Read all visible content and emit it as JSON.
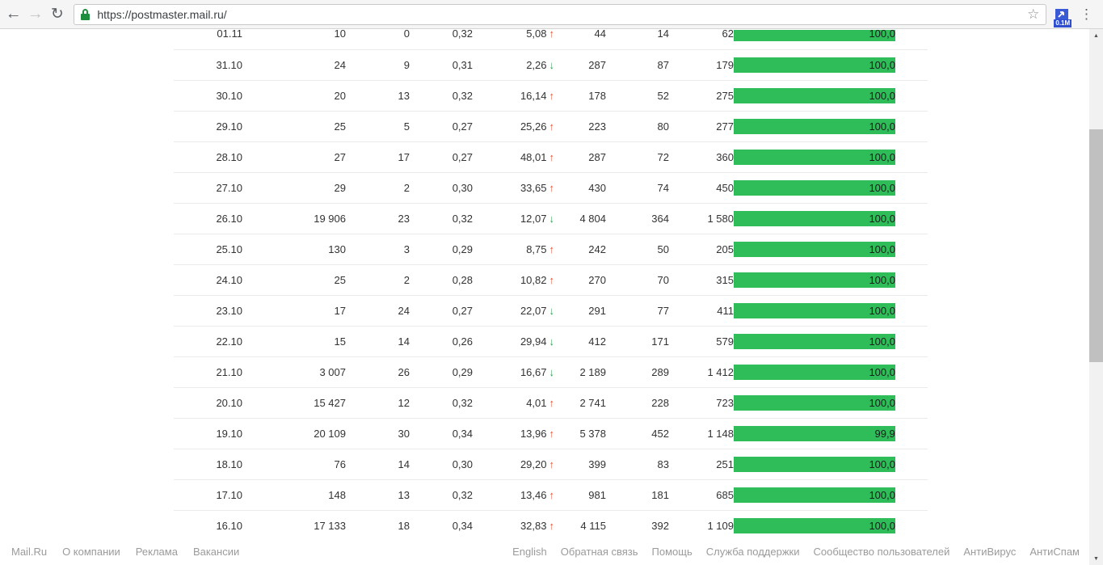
{
  "browser": {
    "url": "https://postmaster.mail.ru/",
    "back_icon": "←",
    "forward_icon": "→",
    "reload_icon": "↻",
    "star_icon": "☆",
    "menu_icon": "⋮",
    "extension_badge": "0.1M"
  },
  "table": {
    "rows": [
      {
        "date": "01.11",
        "c2": "10",
        "c3": "0",
        "c4": "0,32",
        "c5": "5,08",
        "trend": "up",
        "c6": "44",
        "c7": "14",
        "c8": "62",
        "bar_label": "100,0",
        "bar_pct": 100
      },
      {
        "date": "31.10",
        "c2": "24",
        "c3": "9",
        "c4": "0,31",
        "c5": "2,26",
        "trend": "down",
        "c6": "287",
        "c7": "87",
        "c8": "179",
        "bar_label": "100,0",
        "bar_pct": 100
      },
      {
        "date": "30.10",
        "c2": "20",
        "c3": "13",
        "c4": "0,32",
        "c5": "16,14",
        "trend": "up",
        "c6": "178",
        "c7": "52",
        "c8": "275",
        "bar_label": "100,0",
        "bar_pct": 100
      },
      {
        "date": "29.10",
        "c2": "25",
        "c3": "5",
        "c4": "0,27",
        "c5": "25,26",
        "trend": "up",
        "c6": "223",
        "c7": "80",
        "c8": "277",
        "bar_label": "100,0",
        "bar_pct": 100
      },
      {
        "date": "28.10",
        "c2": "27",
        "c3": "17",
        "c4": "0,27",
        "c5": "48,01",
        "trend": "up",
        "c6": "287",
        "c7": "72",
        "c8": "360",
        "bar_label": "100,0",
        "bar_pct": 100
      },
      {
        "date": "27.10",
        "c2": "29",
        "c3": "2",
        "c4": "0,30",
        "c5": "33,65",
        "trend": "up",
        "c6": "430",
        "c7": "74",
        "c8": "450",
        "bar_label": "100,0",
        "bar_pct": 100
      },
      {
        "date": "26.10",
        "c2": "19 906",
        "c3": "23",
        "c4": "0,32",
        "c5": "12,07",
        "trend": "down",
        "c6": "4 804",
        "c7": "364",
        "c8": "1 580",
        "bar_label": "100,0",
        "bar_pct": 100
      },
      {
        "date": "25.10",
        "c2": "130",
        "c3": "3",
        "c4": "0,29",
        "c5": "8,75",
        "trend": "up",
        "c6": "242",
        "c7": "50",
        "c8": "205",
        "bar_label": "100,0",
        "bar_pct": 100
      },
      {
        "date": "24.10",
        "c2": "25",
        "c3": "2",
        "c4": "0,28",
        "c5": "10,82",
        "trend": "up",
        "c6": "270",
        "c7": "70",
        "c8": "315",
        "bar_label": "100,0",
        "bar_pct": 100
      },
      {
        "date": "23.10",
        "c2": "17",
        "c3": "24",
        "c4": "0,27",
        "c5": "22,07",
        "trend": "down",
        "c6": "291",
        "c7": "77",
        "c8": "411",
        "bar_label": "100,0",
        "bar_pct": 100
      },
      {
        "date": "22.10",
        "c2": "15",
        "c3": "14",
        "c4": "0,26",
        "c5": "29,94",
        "trend": "down",
        "c6": "412",
        "c7": "171",
        "c8": "579",
        "bar_label": "100,0",
        "bar_pct": 100
      },
      {
        "date": "21.10",
        "c2": "3 007",
        "c3": "26",
        "c4": "0,29",
        "c5": "16,67",
        "trend": "down",
        "c6": "2 189",
        "c7": "289",
        "c8": "1 412",
        "bar_label": "100,0",
        "bar_pct": 100
      },
      {
        "date": "20.10",
        "c2": "15 427",
        "c3": "12",
        "c4": "0,32",
        "c5": "4,01",
        "trend": "up",
        "c6": "2 741",
        "c7": "228",
        "c8": "723",
        "bar_label": "100,0",
        "bar_pct": 100
      },
      {
        "date": "19.10",
        "c2": "20 109",
        "c3": "30",
        "c4": "0,34",
        "c5": "13,96",
        "trend": "up",
        "c6": "5 378",
        "c7": "452",
        "c8": "1 148",
        "bar_label": "99,9",
        "bar_pct": 99.9
      },
      {
        "date": "18.10",
        "c2": "76",
        "c3": "14",
        "c4": "0,30",
        "c5": "29,20",
        "trend": "up",
        "c6": "399",
        "c7": "83",
        "c8": "251",
        "bar_label": "100,0",
        "bar_pct": 100
      },
      {
        "date": "17.10",
        "c2": "148",
        "c3": "13",
        "c4": "0,32",
        "c5": "13,46",
        "trend": "up",
        "c6": "981",
        "c7": "181",
        "c8": "685",
        "bar_label": "100,0",
        "bar_pct": 100
      },
      {
        "date": "16.10",
        "c2": "17 133",
        "c3": "18",
        "c4": "0,34",
        "c5": "32,83",
        "trend": "up",
        "c6": "4 115",
        "c7": "392",
        "c8": "1 109",
        "bar_label": "100,0",
        "bar_pct": 100
      }
    ]
  },
  "footer": {
    "left": [
      "Mail.Ru",
      "О компании",
      "Реклама",
      "Вакансии"
    ],
    "right": [
      "English",
      "Обратная связь",
      "Помощь",
      "Служба поддержки",
      "Сообщество пользователей",
      "АнтиВирус",
      "АнтиСпам"
    ]
  },
  "icons": {
    "trend_up": "↑",
    "trend_down": "↓",
    "scroll_up": "▲",
    "scroll_down": "▼"
  },
  "colors": {
    "bar_green": "#2ebd59",
    "trend_up": "#e8532f",
    "trend_down": "#2fa152"
  }
}
